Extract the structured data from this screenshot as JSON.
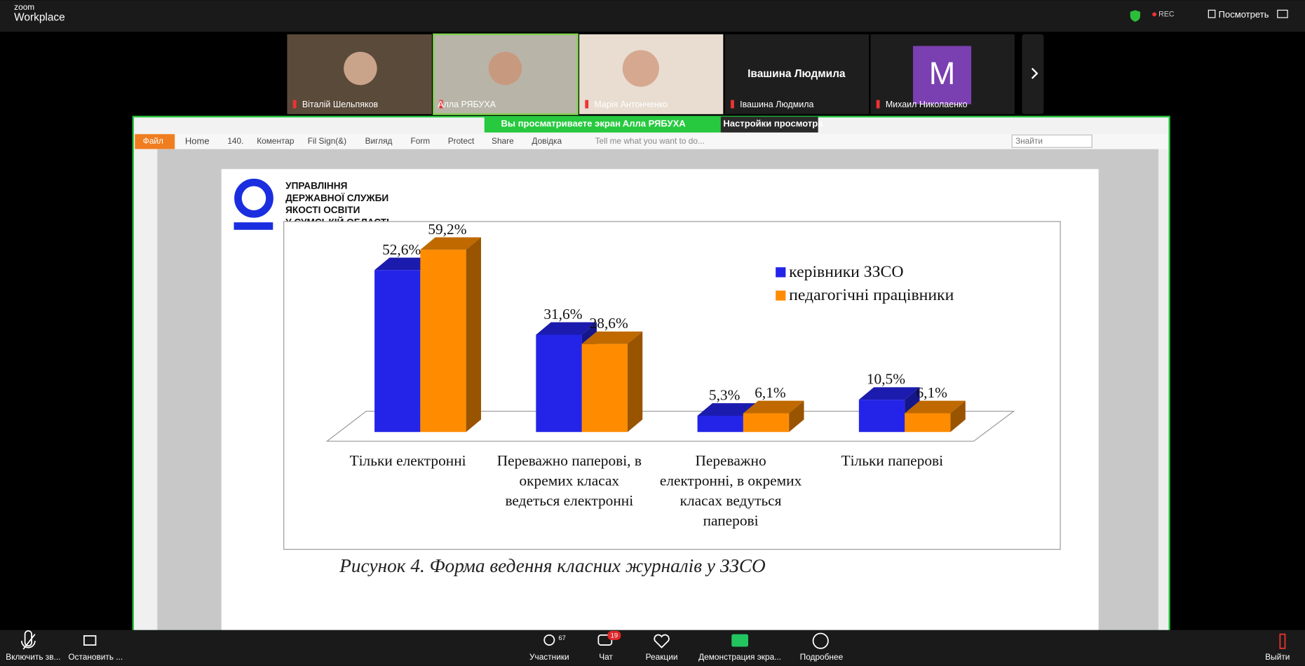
{
  "app": {
    "brand": "zoom",
    "product": "Workplace",
    "rec": "REC",
    "view_button": "Посмотреть"
  },
  "participants": [
    {
      "name": "Віталій Шельпяков"
    },
    {
      "name": "Алла РЯБУХА"
    },
    {
      "name": "Марія Антонченко"
    },
    {
      "name": "Івашина Людмила"
    },
    {
      "name": "Михаил Николаенко",
      "avatar": "M"
    }
  ],
  "share_banner": {
    "text": "Вы просматриваете экран",
    "presenter": "Алла РЯБУХА",
    "settings": "Настройки просмотра"
  },
  "pdf_toolbar": {
    "menu": [
      "Файл",
      "Home",
      "140.",
      "Коментар",
      "Fil Sign(&)",
      "Вигляд",
      "Form",
      "Protect",
      "Share",
      "Довідка"
    ],
    "tell_me": "Tell me what you want to do...",
    "search": "Знайти"
  },
  "document": {
    "org_lines": [
      "УПРАВЛІННЯ",
      "ДЕРЖАВНОЇ СЛУЖБИ",
      "ЯКОСТІ ОСВІТИ",
      "У СУМСЬКІЙ ОБЛАСТІ"
    ],
    "caption": "Рисунок 4. Форма ведення класних журналів у ЗЗСО"
  },
  "chart_data": {
    "type": "bar3d",
    "categories": [
      [
        "Тільки електронні"
      ],
      [
        "Переважно паперові, в",
        "окремих класах",
        "ведеться електронні"
      ],
      [
        "Переважно",
        "електронні, в окремих",
        "класах ведуться",
        "паперові"
      ],
      [
        "Тільки паперові"
      ]
    ],
    "series": [
      {
        "name": "керівники ЗЗСО",
        "color": "#2424e8",
        "values": [
          52.6,
          31.6,
          5.3,
          10.5
        ],
        "value_labels": [
          "52,6%",
          "31,6%",
          "5,3%",
          "10,5%"
        ]
      },
      {
        "name": "педагогічні працівники",
        "color": "#ff8c00",
        "values": [
          59.2,
          28.6,
          6.1,
          6.1
        ],
        "value_labels": [
          "59,2%",
          "28,6%",
          "6,1%",
          "6,1%"
        ]
      }
    ],
    "legend": "top-right"
  },
  "bottom_bar": {
    "mute": "Включить зв...",
    "video": "Остановить ...",
    "participants": "Участники",
    "participants_count": 67,
    "chat": "Чат",
    "chat_badge": 19,
    "reactions": "Реакции",
    "share": "Демонстрация экра...",
    "more": "Подробнее",
    "leave": "Выйти"
  }
}
